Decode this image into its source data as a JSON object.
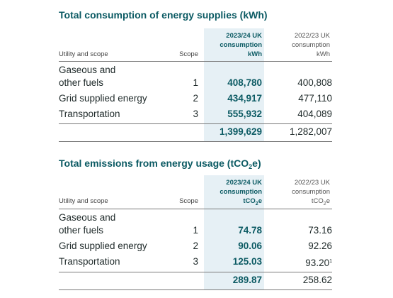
{
  "energy": {
    "title": "Total consumption of energy supplies (kWh)",
    "header": {
      "utility": "Utility and scope",
      "scope": "Scope",
      "current": [
        "2023/24 UK",
        "consumption",
        "kWh"
      ],
      "previous": [
        "2022/23 UK",
        "consumption",
        "kWh"
      ]
    },
    "rows": [
      {
        "label1": "Gaseous and",
        "label2": "other fuels",
        "scope": "1",
        "current": "408,780",
        "previous": "400,808"
      },
      {
        "label1": "Grid supplied energy",
        "scope": "2",
        "current": "434,917",
        "previous": "477,110"
      },
      {
        "label1": "Transportation",
        "scope": "3",
        "current": "555,932",
        "previous": "404,089"
      }
    ],
    "total": {
      "current": "1,399,629",
      "previous": "1,282,007"
    }
  },
  "emissions": {
    "title_pre": "Total emissions from energy usage (tCO",
    "title_sub": "2",
    "title_post": "e)",
    "header": {
      "utility": "Utility and scope",
      "scope": "Scope",
      "current_l1": "2023/24 UK",
      "current_l2": "consumption",
      "current_unit_pre": "tCO",
      "current_unit_sub": "2",
      "current_unit_post": "e",
      "previous_l1": "2022/23 UK",
      "previous_l2": "consumption",
      "previous_unit_pre": "tCO",
      "previous_unit_sub": "2",
      "previous_unit_post": "e"
    },
    "rows": [
      {
        "label1": "Gaseous and",
        "label2": "other fuels",
        "scope": "1",
        "current": "74.78",
        "previous": "73.16"
      },
      {
        "label1": "Grid supplied energy",
        "scope": "2",
        "current": "90.06",
        "previous": "92.26"
      },
      {
        "label1": "Transportation",
        "scope": "3",
        "current": "125.03",
        "previous": "93.20",
        "previous_note": "1"
      }
    ],
    "total": {
      "current": "289.87",
      "previous": "258.62"
    }
  }
}
